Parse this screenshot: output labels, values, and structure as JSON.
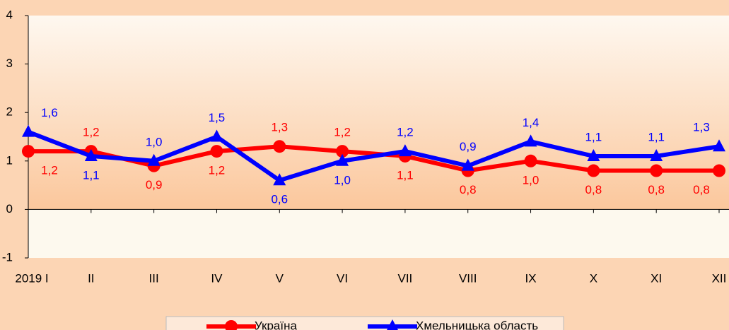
{
  "chart_data": {
    "type": "line",
    "categories": [
      "2019 I",
      "II",
      "III",
      "IV",
      "V",
      "VI",
      "VII",
      "VIII",
      "IX",
      "X",
      "XI",
      "XII"
    ],
    "series": [
      {
        "name": "Україна",
        "color": "#ff0000",
        "marker": "circle",
        "values": [
          1.2,
          1.2,
          0.9,
          1.2,
          1.3,
          1.2,
          1.1,
          0.8,
          1.0,
          0.8,
          0.8,
          0.8
        ],
        "value_labels": [
          "1,2",
          "1,2",
          "0,9",
          "1,2",
          "1,3",
          "1,2",
          "1,1",
          "0,8",
          "1,0",
          "0,8",
          "0,8",
          "0,8"
        ]
      },
      {
        "name": "Хмельницька область",
        "color": "#0000ff",
        "marker": "triangle",
        "values": [
          1.6,
          1.1,
          1.0,
          1.5,
          0.6,
          1.0,
          1.2,
          0.9,
          1.4,
          1.1,
          1.1,
          1.3
        ],
        "value_labels": [
          "1,6",
          "1,1",
          "1,0",
          "1,5",
          "0,6",
          "1,0",
          "1,2",
          "0,9",
          "1,4",
          "1,1",
          "1,1",
          "1,3"
        ]
      }
    ],
    "ylim": [
      -1,
      4
    ],
    "yticks": [
      -1,
      0,
      1,
      2,
      3,
      4
    ],
    "legend": "bottom"
  }
}
